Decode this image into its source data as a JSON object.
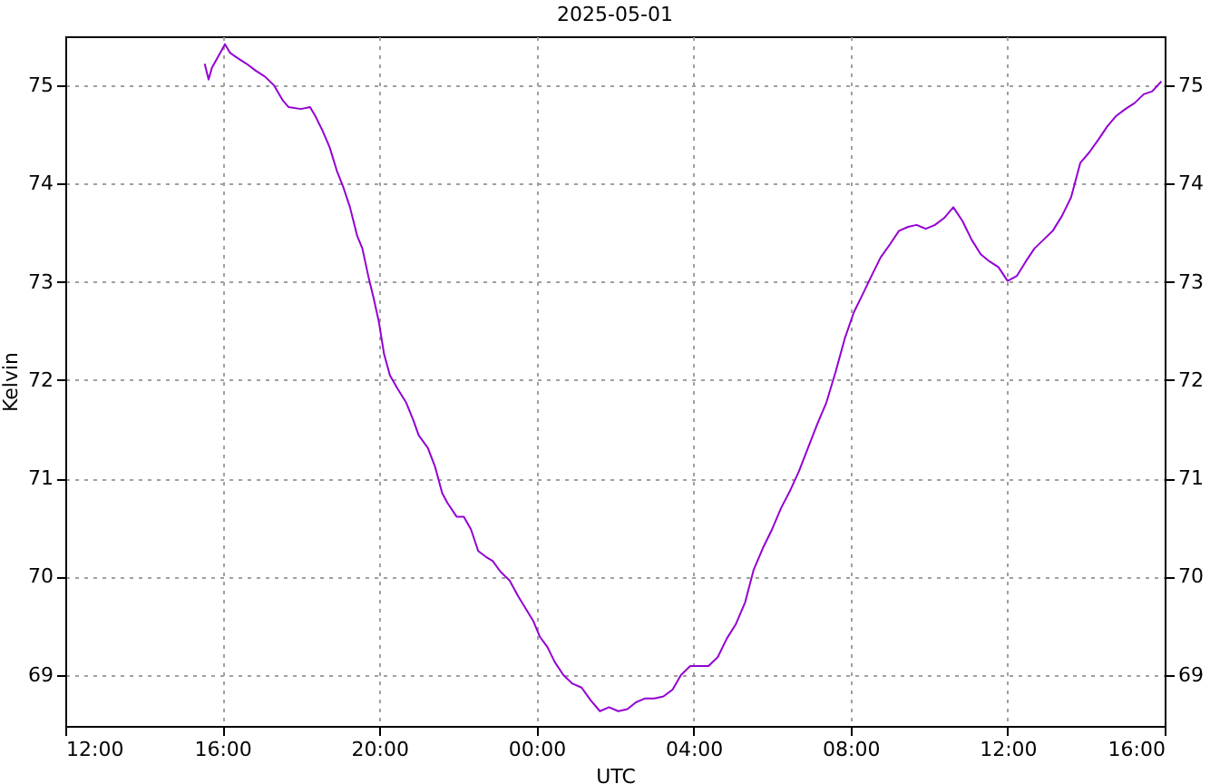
{
  "chart_data": {
    "type": "line",
    "title": "2025-05-01",
    "xlabel": "UTC",
    "ylabel": "Kelvin",
    "x": [
      "2025-04-30T15:33",
      "2025-04-30T15:39",
      "2025-04-30T15:44",
      "2025-04-30T15:55",
      "2025-04-30T16:04",
      "2025-04-30T16:12",
      "2025-04-30T16:23",
      "2025-04-30T16:37",
      "2025-04-30T16:51",
      "2025-04-30T17:05",
      "2025-04-30T17:19",
      "2025-04-30T17:32",
      "2025-04-30T17:41",
      "2025-04-30T18:00",
      "2025-04-30T18:14",
      "2025-04-30T18:22",
      "2025-04-30T18:33",
      "2025-04-30T18:44",
      "2025-04-30T18:55",
      "2025-04-30T19:04",
      "2025-04-30T19:15",
      "2025-04-30T19:26",
      "2025-04-30T19:34",
      "2025-04-30T19:43",
      "2025-04-30T19:51",
      "2025-04-30T19:59",
      "2025-04-30T20:07",
      "2025-04-30T20:16",
      "2025-04-30T20:27",
      "2025-04-30T20:41",
      "2025-04-30T20:52",
      "2025-04-30T21:00",
      "2025-04-30T21:14",
      "2025-04-30T21:25",
      "2025-04-30T21:36",
      "2025-04-30T21:44",
      "2025-04-30T21:58",
      "2025-04-30T22:09",
      "2025-04-30T22:20",
      "2025-04-30T22:31",
      "2025-04-30T22:43",
      "2025-04-30T22:53",
      "2025-04-30T23:05",
      "2025-04-30T23:19",
      "2025-04-30T23:32",
      "2025-04-30T23:43",
      "2025-04-30T23:55",
      "2025-05-01T00:05",
      "2025-05-01T00:17",
      "2025-05-01T00:28",
      "2025-05-01T00:41",
      "2025-05-01T00:55",
      "2025-05-01T01:09",
      "2025-05-01T01:23",
      "2025-05-01T01:37",
      "2025-05-01T01:51",
      "2025-05-01T02:05",
      "2025-05-01T02:19",
      "2025-05-01T02:32",
      "2025-05-01T02:46",
      "2025-05-01T03:00",
      "2025-05-01T03:14",
      "2025-05-01T03:28",
      "2025-05-01T03:41",
      "2025-05-01T03:55",
      "2025-05-01T04:09",
      "2025-05-01T04:23",
      "2025-05-01T04:37",
      "2025-05-01T04:51",
      "2025-05-01T05:05",
      "2025-05-01T05:19",
      "2025-05-01T05:32",
      "2025-05-01T05:46",
      "2025-05-01T06:00",
      "2025-05-01T06:14",
      "2025-05-01T06:28",
      "2025-05-01T06:41",
      "2025-05-01T06:55",
      "2025-05-01T07:09",
      "2025-05-01T07:23",
      "2025-05-01T07:37",
      "2025-05-01T07:51",
      "2025-05-01T08:05",
      "2025-05-01T08:19",
      "2025-05-01T08:32",
      "2025-05-01T08:46",
      "2025-05-01T09:00",
      "2025-05-01T09:14",
      "2025-05-01T09:28",
      "2025-05-01T09:41",
      "2025-05-01T09:55",
      "2025-05-01T10:09",
      "2025-05-01T10:23",
      "2025-05-01T10:37",
      "2025-05-01T10:51",
      "2025-05-01T11:05",
      "2025-05-01T11:19",
      "2025-05-01T11:32",
      "2025-05-01T11:46",
      "2025-05-01T12:00",
      "2025-05-01T12:14",
      "2025-05-01T12:28",
      "2025-05-01T12:41",
      "2025-05-01T12:55",
      "2025-05-01T13:09",
      "2025-05-01T13:23",
      "2025-05-01T13:37",
      "2025-05-01T13:51",
      "2025-05-01T14:05",
      "2025-05-01T14:19",
      "2025-05-01T14:32",
      "2025-05-01T14:46",
      "2025-05-01T15:00",
      "2025-05-01T15:14",
      "2025-05-01T15:28",
      "2025-05-01T15:41",
      "2025-05-01T15:55"
    ],
    "series": [
      {
        "color": "#9400d3",
        "values": [
          75.22,
          75.06,
          75.18,
          75.31,
          75.42,
          75.33,
          75.28,
          75.22,
          75.15,
          75.09,
          75.0,
          74.85,
          74.78,
          74.76,
          74.78,
          74.69,
          74.54,
          74.37,
          74.13,
          73.98,
          73.76,
          73.47,
          73.34,
          73.06,
          72.84,
          72.6,
          72.27,
          72.05,
          71.92,
          71.77,
          71.59,
          71.44,
          71.31,
          71.12,
          70.85,
          70.75,
          70.61,
          70.61,
          70.48,
          70.26,
          70.2,
          70.16,
          70.05,
          69.96,
          69.8,
          69.68,
          69.55,
          69.39,
          69.28,
          69.13,
          69.0,
          68.91,
          68.87,
          68.74,
          68.63,
          68.67,
          68.63,
          68.65,
          68.72,
          68.76,
          68.76,
          68.78,
          68.85,
          69.0,
          69.09,
          69.09,
          69.09,
          69.18,
          69.37,
          69.52,
          69.74,
          70.07,
          70.29,
          70.48,
          70.7,
          70.88,
          71.07,
          71.31,
          71.55,
          71.77,
          72.08,
          72.42,
          72.69,
          72.88,
          73.06,
          73.25,
          73.38,
          73.52,
          73.56,
          73.58,
          73.54,
          73.58,
          73.65,
          73.76,
          73.62,
          73.43,
          73.28,
          73.21,
          73.15,
          73.01,
          73.06,
          73.21,
          73.34,
          73.43,
          73.52,
          73.67,
          73.86,
          74.21,
          74.32,
          74.45,
          74.58,
          74.69,
          74.76,
          74.82,
          74.91,
          74.94,
          75.04
        ]
      }
    ],
    "xlim": [
      "2025-04-30T12:00",
      "2025-05-01T16:00"
    ],
    "xticks": [
      {
        "value": "2025-04-30T12:00",
        "label": "12:00"
      },
      {
        "value": "2025-04-30T16:00",
        "label": "16:00"
      },
      {
        "value": "2025-04-30T20:00",
        "label": "20:00"
      },
      {
        "value": "2025-05-01T00:00",
        "label": "00:00"
      },
      {
        "value": "2025-05-01T04:00",
        "label": "04:00"
      },
      {
        "value": "2025-05-01T08:00",
        "label": "08:00"
      },
      {
        "value": "2025-05-01T12:00",
        "label": "12:00"
      },
      {
        "value": "2025-05-01T16:00",
        "label": "16:00"
      }
    ],
    "ylim": [
      68.48,
      75.5
    ],
    "yticks": [
      69,
      70,
      71,
      72,
      73,
      74,
      75
    ],
    "y2lim": [
      68.48,
      75.5
    ],
    "y2ticks": [
      69,
      70,
      71,
      72,
      73,
      74,
      75
    ],
    "grid": true,
    "line_style": "solid",
    "marker": "none",
    "legend": false
  }
}
